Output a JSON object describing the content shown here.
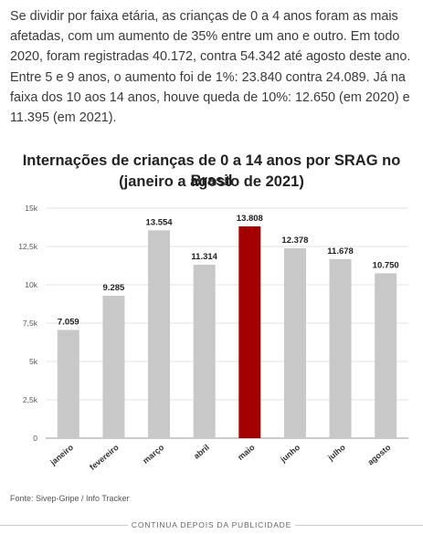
{
  "article": {
    "paragraph": "Se dividir por faixa etária, as crianças de 0 a 4 anos foram as mais afetadas, com um aumento de 35% entre um ano e outro. Em todo 2020, foram registradas 40.172, contra 54.342 até agosto deste ano. Entre 5 e 9 anos, o aumento foi de 1%: 23.840 contra 24.089. Já na faixa dos 10 aos 14 anos, houve queda de 10%: 12.650 (em 2020) e 11.395 (em 2021)."
  },
  "chart_data": {
    "type": "bar",
    "title": "Internações de crianças de 0 a 14 anos por SRAG no Brasil",
    "subtitle": "(janeiro a agosto de 2021)",
    "categories": [
      "janeiro",
      "fevereiro",
      "março",
      "abril",
      "maio",
      "junho",
      "julho",
      "agosto"
    ],
    "values": [
      7059,
      9285,
      13554,
      11314,
      13808,
      12378,
      11678,
      10750
    ],
    "value_labels": [
      "7.059",
      "9.285",
      "13.554",
      "11.314",
      "13.808",
      "12.378",
      "11.678",
      "10.750"
    ],
    "ylim": [
      0,
      15000
    ],
    "yticks": [
      0,
      2500,
      5000,
      7500,
      10000,
      12500,
      15000
    ],
    "ytick_labels": [
      "0",
      "2,5k",
      "5k",
      "7,5k",
      "10k",
      "12,5k",
      "15k"
    ],
    "xlabel": "",
    "ylabel": "",
    "grid": true,
    "colors": {
      "default_bar": "#c8c8c8",
      "highlight_bar": "#a50000",
      "highlight_index": 4
    }
  },
  "source": "Fonte: Sivep-Gripe / Info Tracker",
  "ad_divider": "CONTINUA DEPOIS DA PUBLICIDADE"
}
